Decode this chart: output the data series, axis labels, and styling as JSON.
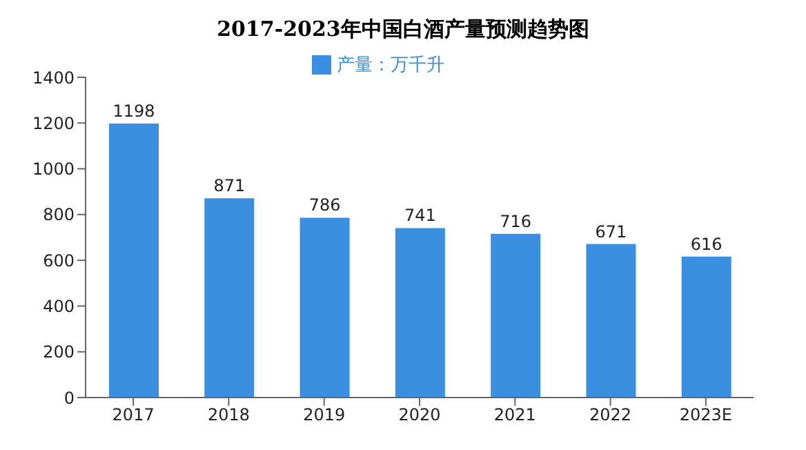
{
  "chart_data": {
    "type": "bar",
    "title": "2017-2023年中国白酒产量预测趋势图",
    "categories": [
      "2017",
      "2018",
      "2019",
      "2020",
      "2021",
      "2022",
      "2023E"
    ],
    "series": [
      {
        "name": "产量：万千升",
        "color": "#3a8fe0",
        "values": [
          1198,
          871,
          786,
          741,
          716,
          671,
          616
        ]
      }
    ],
    "ylim": [
      0,
      1400
    ],
    "yticks": [
      0,
      200,
      400,
      600,
      800,
      1000,
      1200,
      1400
    ],
    "data_labels": true,
    "legend": "top"
  }
}
